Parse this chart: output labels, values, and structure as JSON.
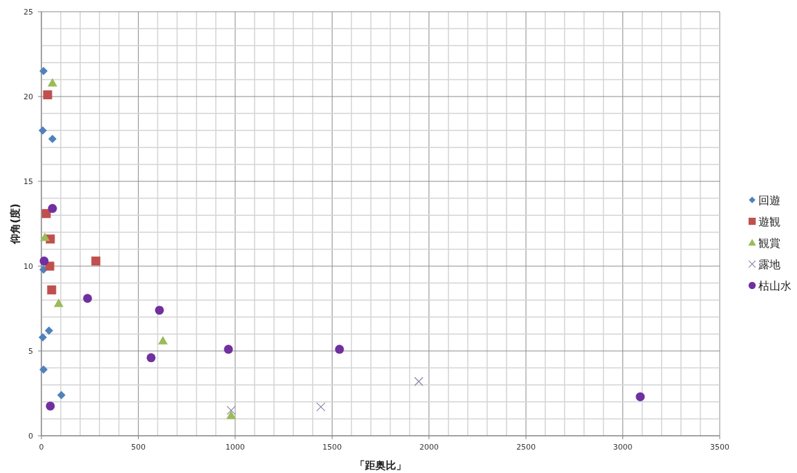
{
  "chart_data": {
    "type": "scatter",
    "xlabel": "「距奥比」",
    "ylabel": "仰角(度)",
    "xlim": [
      0,
      3500
    ],
    "ylim": [
      0,
      25
    ],
    "xticks": [
      0,
      500,
      1000,
      1500,
      2000,
      2500,
      3000,
      3500
    ],
    "yticks": [
      0,
      5,
      10,
      15,
      20,
      25
    ],
    "grid": true,
    "legend": "right",
    "series": [
      {
        "name": "回遊",
        "color": "#4f81bd",
        "marker": "diamond",
        "x": [
          11,
          7,
          57,
          11,
          7,
          39,
          11,
          103
        ],
        "values": [
          21.5,
          18.0,
          17.5,
          9.8,
          5.8,
          6.2,
          3.9,
          2.4
        ]
      },
      {
        "name": "遊観",
        "color": "#c0504d",
        "marker": "square",
        "x": [
          32,
          25,
          46,
          43,
          53,
          281
        ],
        "values": [
          20.1,
          13.1,
          11.6,
          10.0,
          8.6,
          10.3
        ]
      },
      {
        "name": "観賞",
        "color": "#9bbb59",
        "marker": "triangle",
        "x": [
          57,
          18,
          89,
          627,
          979
        ],
        "values": [
          20.8,
          11.7,
          7.8,
          5.6,
          1.2
        ]
      },
      {
        "name": "露地",
        "color": "#8a84a8",
        "marker": "cross",
        "x": [
          979,
          1442,
          1947
        ],
        "values": [
          1.5,
          1.7,
          3.2
        ]
      },
      {
        "name": "枯山水",
        "color": "#7030a0",
        "marker": "circle",
        "x": [
          57,
          14,
          238,
          609,
          566,
          965,
          1538,
          3090,
          46
        ],
        "values": [
          13.4,
          10.3,
          8.1,
          7.4,
          4.6,
          5.1,
          5.1,
          2.3,
          1.75
        ]
      }
    ]
  }
}
